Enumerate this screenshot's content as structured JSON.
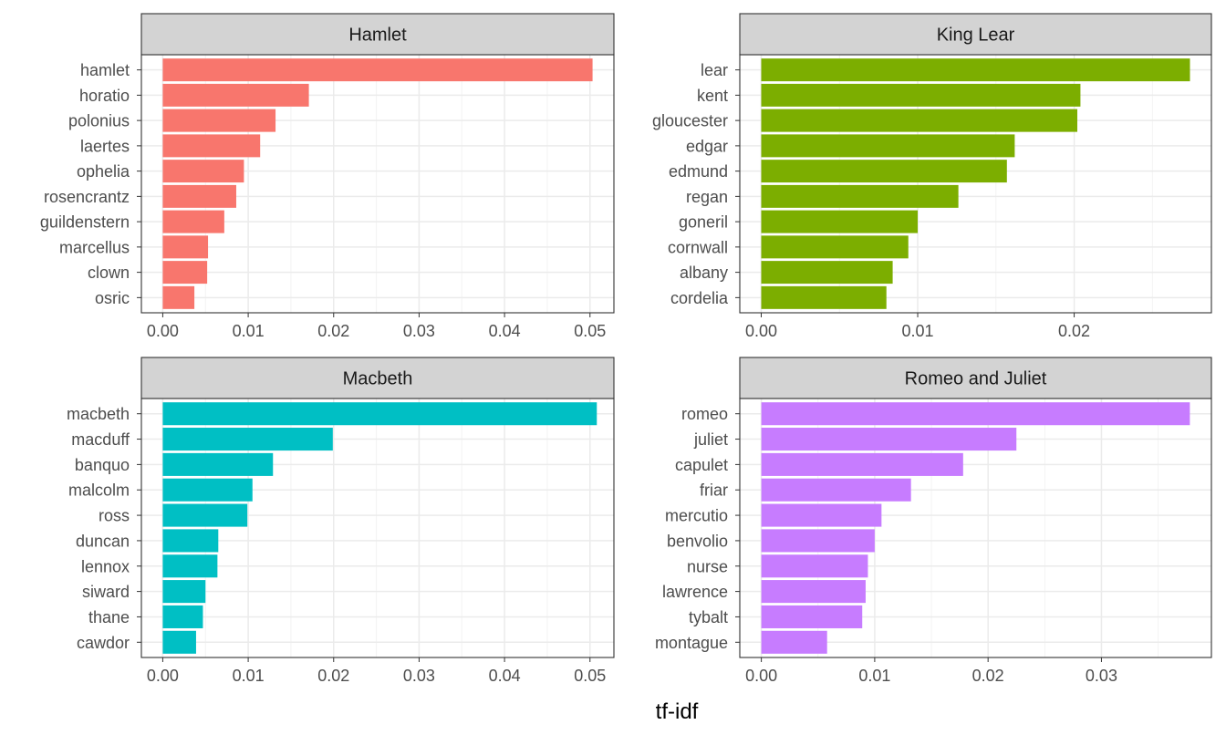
{
  "chart_data": [
    {
      "type": "bar",
      "orientation": "horizontal",
      "title": "Hamlet",
      "color": "#F8766D",
      "categories": [
        "hamlet",
        "horatio",
        "polonius",
        "laertes",
        "ophelia",
        "rosencrantz",
        "guildenstern",
        "marcellus",
        "clown",
        "osric"
      ],
      "values": [
        0.0503,
        0.0171,
        0.0132,
        0.0114,
        0.0095,
        0.0086,
        0.0072,
        0.0053,
        0.0052,
        0.0037
      ],
      "xlim": [
        -0.0025,
        0.0528
      ],
      "xticks": [
        0.0,
        0.01,
        0.02,
        0.03,
        0.04,
        0.05
      ],
      "xtick_labels": [
        "0.00",
        "0.01",
        "0.02",
        "0.03",
        "0.04",
        "0.05"
      ]
    },
    {
      "type": "bar",
      "orientation": "horizontal",
      "title": "King Lear",
      "color": "#7CAE00",
      "categories": [
        "lear",
        "kent",
        "gloucester",
        "edgar",
        "edmund",
        "regan",
        "goneril",
        "cornwall",
        "albany",
        "cordelia"
      ],
      "values": [
        0.0274,
        0.0204,
        0.0202,
        0.0162,
        0.0157,
        0.0126,
        0.01,
        0.0094,
        0.0084,
        0.008
      ],
      "xlim": [
        -0.00137,
        0.02877
      ],
      "xticks": [
        0.0,
        0.01,
        0.02
      ],
      "xtick_labels": [
        "0.00",
        "0.01",
        "0.02"
      ]
    },
    {
      "type": "bar",
      "orientation": "horizontal",
      "title": "Macbeth",
      "color": "#00BFC4",
      "categories": [
        "macbeth",
        "macduff",
        "banquo",
        "malcolm",
        "ross",
        "duncan",
        "lennox",
        "siward",
        "thane",
        "cawdor"
      ],
      "values": [
        0.0508,
        0.0199,
        0.0129,
        0.0105,
        0.0099,
        0.0065,
        0.0064,
        0.005,
        0.0047,
        0.0039
      ],
      "xlim": [
        -0.0025,
        0.0528
      ],
      "xticks": [
        0.0,
        0.01,
        0.02,
        0.03,
        0.04,
        0.05
      ],
      "xtick_labels": [
        "0.00",
        "0.01",
        "0.02",
        "0.03",
        "0.04",
        "0.05"
      ]
    },
    {
      "type": "bar",
      "orientation": "horizontal",
      "title": "Romeo and Juliet",
      "color": "#C77CFF",
      "categories": [
        "romeo",
        "juliet",
        "capulet",
        "friar",
        "mercutio",
        "benvolio",
        "nurse",
        "lawrence",
        "tybalt",
        "montague"
      ],
      "values": [
        0.0378,
        0.0225,
        0.0178,
        0.0132,
        0.0106,
        0.01,
        0.0094,
        0.0092,
        0.0089,
        0.0058
      ],
      "xlim": [
        -0.0019,
        0.0397
      ],
      "xticks": [
        0.0,
        0.01,
        0.02,
        0.03
      ],
      "xtick_labels": [
        "0.00",
        "0.01",
        "0.02",
        "0.03"
      ]
    }
  ],
  "xlabel": "tf-idf",
  "ylabel": ""
}
